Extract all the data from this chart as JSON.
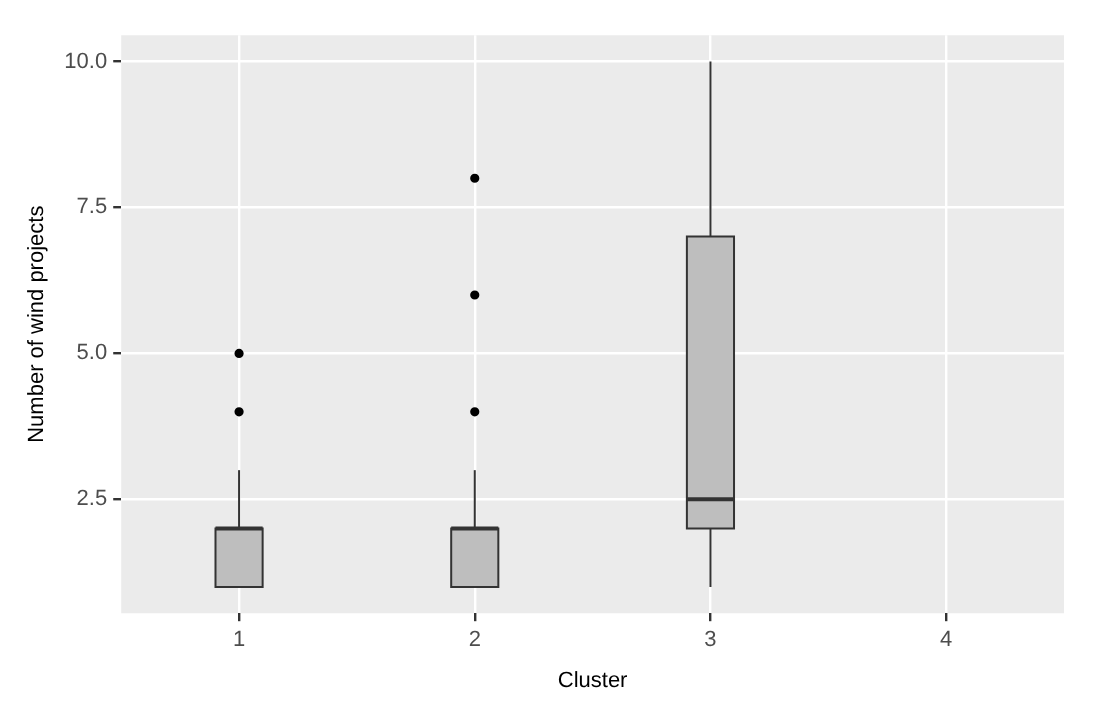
{
  "chart_data": {
    "type": "box",
    "xlabel": "Cluster",
    "ylabel": "Number of wind projects",
    "categories": [
      "1",
      "2",
      "3",
      "4"
    ],
    "boxes": [
      {
        "low": 1,
        "q1": 1,
        "median": 2,
        "q3": 2,
        "high": 3,
        "outliers": [
          4,
          5
        ]
      },
      {
        "low": 1,
        "q1": 1,
        "median": 2,
        "q3": 2,
        "high": 3,
        "outliers": [
          4,
          6,
          8
        ]
      },
      {
        "low": 1,
        "q1": 2,
        "median": 2.5,
        "q3": 7,
        "high": 10
      },
      null
    ],
    "color": "#bebebe",
    "ylim": [
      0.55,
      10.45
    ],
    "yticks": [
      {
        "value": 2.5,
        "label": "2.5"
      },
      {
        "value": 5,
        "label": "5.0"
      },
      {
        "value": 7.5,
        "label": "7.5"
      },
      {
        "value": 10,
        "label": "10.0"
      }
    ],
    "grid": true
  }
}
